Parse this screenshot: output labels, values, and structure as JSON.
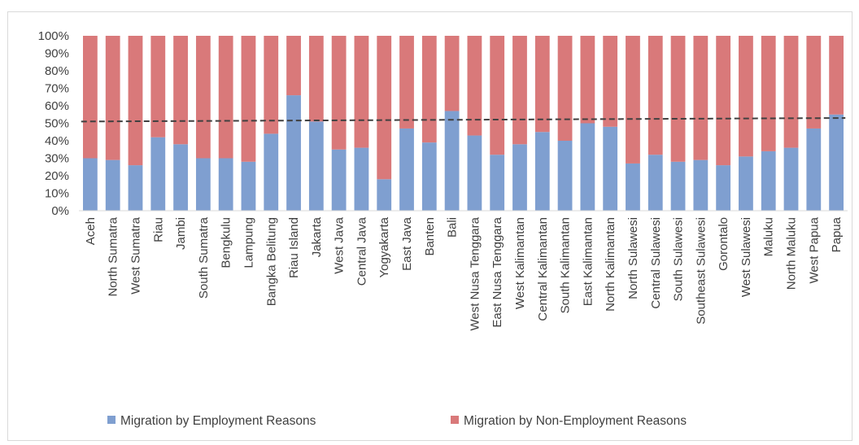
{
  "chart_data": {
    "type": "bar",
    "stacked": "percent",
    "categories": [
      "Aceh",
      "North Sumatra",
      "West Sumatra",
      "Riau",
      "Jambi",
      "South Sumatra",
      "Bengkulu",
      "Lampung",
      "Bangka Belitung",
      "Riau Island",
      "Jakarta",
      "West Java",
      "Central Java",
      "Yogyakarta",
      "East Java",
      "Banten",
      "Bali",
      "West Nusa Tenggara",
      "East Nusa Tenggara",
      "West Kalimantan",
      "Central Kalimantan",
      "South Kalimantan",
      "East Kalimantan",
      "North Kalimantan",
      "North Sulawesi",
      "Central Sulawesi",
      "South Sulawesi",
      "Southeast Sulawesi",
      "Gorontalo",
      "West Sulawesi",
      "Maluku",
      "North Maluku",
      "West Papua",
      "Papua"
    ],
    "series": [
      {
        "name": "Migration by Employment Reasons",
        "color": "#7f9fd0",
        "values": [
          30,
          29,
          26,
          42,
          38,
          30,
          30,
          28,
          44,
          66,
          51,
          35,
          36,
          18,
          47,
          39,
          57,
          43,
          32,
          38,
          45,
          40,
          50,
          48,
          27,
          32,
          28,
          29,
          26,
          31,
          34,
          36,
          47,
          55
        ]
      },
      {
        "name": "Migration by Non-Employment Reasons",
        "color": "#d9797a",
        "values": [
          70,
          71,
          74,
          58,
          62,
          70,
          70,
          72,
          56,
          34,
          49,
          65,
          64,
          82,
          53,
          61,
          43,
          57,
          68,
          62,
          55,
          60,
          50,
          52,
          73,
          68,
          72,
          71,
          74,
          69,
          66,
          64,
          53,
          45
        ]
      }
    ],
    "trendline": {
      "style": "dashed",
      "color": "#404040",
      "start": 51,
      "end": 53
    },
    "yticks": [
      "0%",
      "10%",
      "20%",
      "30%",
      "40%",
      "50%",
      "60%",
      "70%",
      "80%",
      "90%",
      "100%"
    ],
    "ylim": [
      0,
      100
    ],
    "grid": false,
    "legend": "bottom"
  }
}
